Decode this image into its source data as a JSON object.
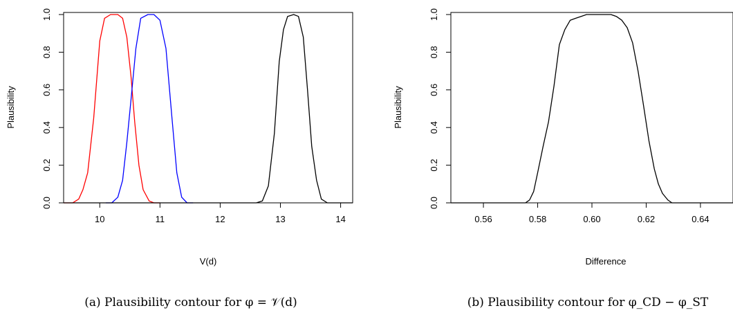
{
  "chart_data": [
    {
      "type": "line",
      "xlabel": "V(d)",
      "ylabel": "Plausibility",
      "xlim": [
        9.4,
        14.2
      ],
      "ylim": [
        0,
        1
      ],
      "xticks": [
        10,
        11,
        12,
        13,
        14
      ],
      "yticks": [
        0.0,
        0.2,
        0.4,
        0.6,
        0.8,
        1.0
      ],
      "ytick_labels": [
        "0.0",
        "0.2",
        "0.4",
        "0.6",
        "0.8",
        "1.0"
      ],
      "grid": false,
      "caption": "(a)  Plausibility contour for φ = 𝒱(d)",
      "series": [
        {
          "color": "#ff0000",
          "points": [
            [
              9.4,
              0
            ],
            [
              9.55,
              0
            ],
            [
              9.65,
              0.02
            ],
            [
              9.72,
              0.07
            ],
            [
              9.8,
              0.16
            ],
            [
              9.9,
              0.45
            ],
            [
              10.0,
              0.86
            ],
            [
              10.08,
              0.98
            ],
            [
              10.18,
              1.0
            ],
            [
              10.3,
              1.0
            ],
            [
              10.38,
              0.98
            ],
            [
              10.45,
              0.88
            ],
            [
              10.52,
              0.67
            ],
            [
              10.58,
              0.43
            ],
            [
              10.65,
              0.2
            ],
            [
              10.72,
              0.07
            ],
            [
              10.82,
              0.01
            ],
            [
              10.9,
              0
            ],
            [
              11.0,
              0
            ]
          ]
        },
        {
          "color": "#0000ff",
          "points": [
            [
              10.1,
              0
            ],
            [
              10.2,
              0
            ],
            [
              10.3,
              0.03
            ],
            [
              10.38,
              0.12
            ],
            [
              10.45,
              0.32
            ],
            [
              10.52,
              0.55
            ],
            [
              10.6,
              0.82
            ],
            [
              10.68,
              0.98
            ],
            [
              10.8,
              1.0
            ],
            [
              10.9,
              1.0
            ],
            [
              11.0,
              0.97
            ],
            [
              11.1,
              0.82
            ],
            [
              11.2,
              0.45
            ],
            [
              11.28,
              0.16
            ],
            [
              11.36,
              0.03
            ],
            [
              11.45,
              0
            ],
            [
              11.55,
              0
            ]
          ]
        },
        {
          "color": "#000000",
          "points": [
            [
              9.4,
              0
            ],
            [
              12.6,
              0
            ],
            [
              12.7,
              0.01
            ],
            [
              12.8,
              0.09
            ],
            [
              12.9,
              0.37
            ],
            [
              12.98,
              0.75
            ],
            [
              13.05,
              0.92
            ],
            [
              13.12,
              0.99
            ],
            [
              13.22,
              1.0
            ],
            [
              13.3,
              0.99
            ],
            [
              13.38,
              0.88
            ],
            [
              13.45,
              0.6
            ],
            [
              13.52,
              0.3
            ],
            [
              13.6,
              0.12
            ],
            [
              13.68,
              0.02
            ],
            [
              13.78,
              0
            ],
            [
              14.2,
              0
            ]
          ]
        }
      ]
    },
    {
      "type": "line",
      "xlabel": "Difference",
      "ylabel": "Plausibility",
      "xlim": [
        0.548,
        0.652
      ],
      "ylim": [
        0,
        1
      ],
      "xticks": [
        0.56,
        0.58,
        0.6,
        0.62,
        0.64
      ],
      "xtick_labels": [
        "0.56",
        "0.58",
        "0.60",
        "0.62",
        "0.64"
      ],
      "yticks": [
        0.0,
        0.2,
        0.4,
        0.6,
        0.8,
        1.0
      ],
      "ytick_labels": [
        "0.0",
        "0.2",
        "0.4",
        "0.6",
        "0.8",
        "1.0"
      ],
      "grid": false,
      "caption": "(b)  Plausibility contour for φ_CD − φ_ST",
      "series": [
        {
          "color": "#000000",
          "points": [
            [
              0.548,
              0
            ],
            [
              0.5755,
              0
            ],
            [
              0.577,
              0.015
            ],
            [
              0.5785,
              0.06
            ],
            [
              0.58,
              0.16
            ],
            [
              0.582,
              0.3
            ],
            [
              0.584,
              0.43
            ],
            [
              0.586,
              0.62
            ],
            [
              0.588,
              0.84
            ],
            [
              0.59,
              0.92
            ],
            [
              0.592,
              0.97
            ],
            [
              0.594,
              0.98
            ],
            [
              0.596,
              0.99
            ],
            [
              0.598,
              1.0
            ],
            [
              0.607,
              1.0
            ],
            [
              0.609,
              0.99
            ],
            [
              0.611,
              0.97
            ],
            [
              0.613,
              0.93
            ],
            [
              0.615,
              0.85
            ],
            [
              0.617,
              0.7
            ],
            [
              0.619,
              0.52
            ],
            [
              0.621,
              0.33
            ],
            [
              0.623,
              0.18
            ],
            [
              0.6245,
              0.1
            ],
            [
              0.626,
              0.05
            ],
            [
              0.628,
              0.015
            ],
            [
              0.6295,
              0
            ],
            [
              0.652,
              0
            ]
          ]
        }
      ]
    }
  ]
}
